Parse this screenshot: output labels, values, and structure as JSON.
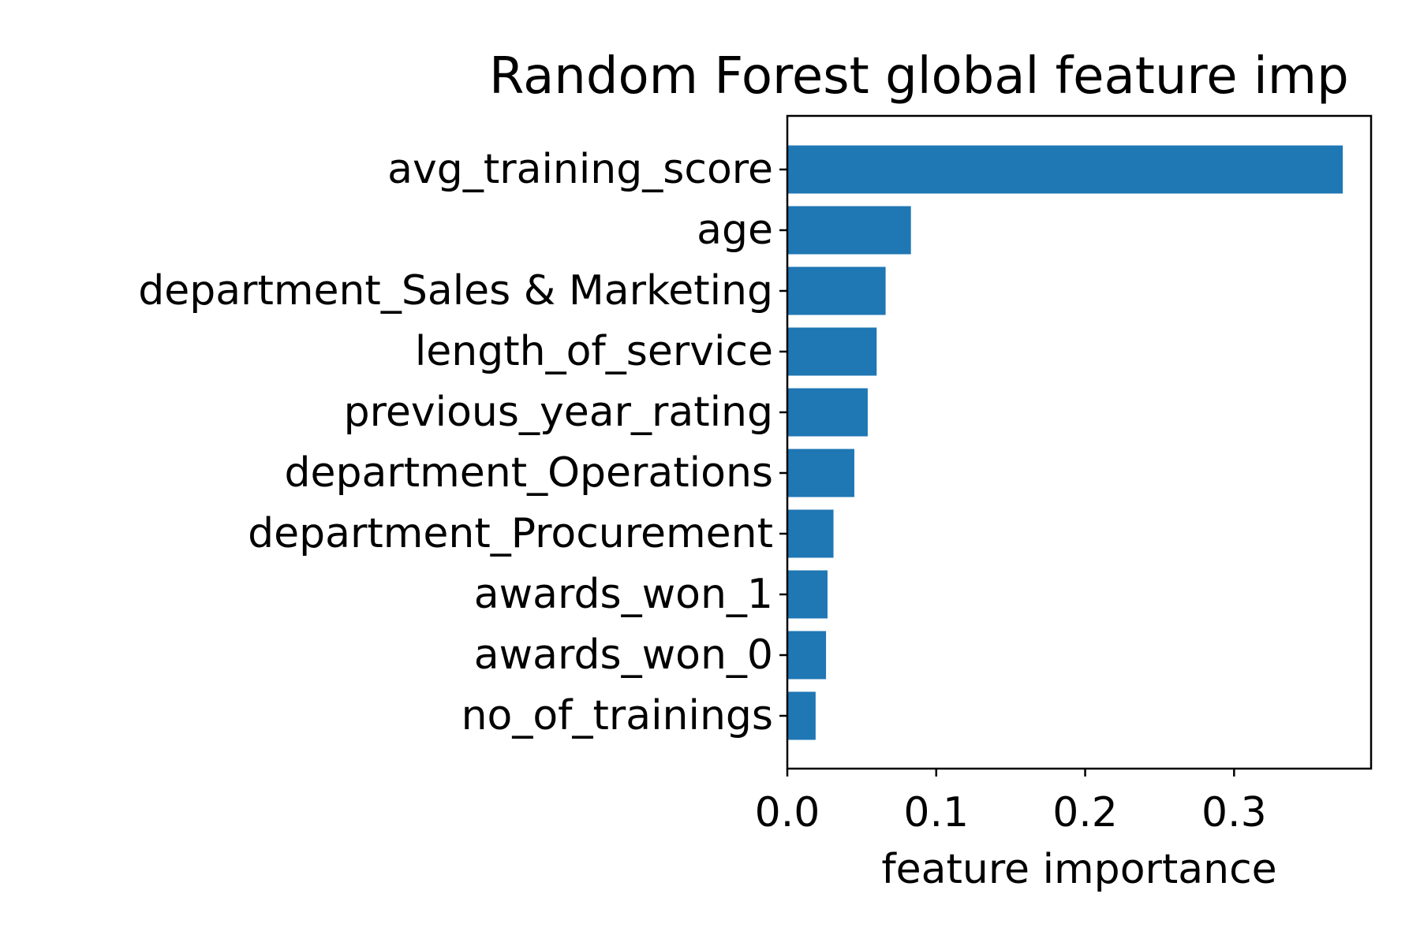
{
  "chart_data": {
    "type": "bar",
    "orientation": "horizontal",
    "title": "Random Forest global feature imp",
    "xlabel": "feature importance",
    "ylabel": "",
    "categories": [
      "avg_training_score",
      "age",
      "department_Sales & Marketing",
      "length_of_service",
      "previous_year_rating",
      "department_Operations",
      "department_Procurement",
      "awards_won_1",
      "awards_won_0",
      "no_of_trainings"
    ],
    "values": [
      0.373,
      0.083,
      0.066,
      0.06,
      0.054,
      0.045,
      0.031,
      0.027,
      0.026,
      0.019
    ],
    "xlim": [
      0.0,
      0.392
    ],
    "xticks": [
      0.0,
      0.1,
      0.2,
      0.3
    ],
    "xtick_labels": [
      "0.0",
      "0.1",
      "0.2",
      "0.3"
    ],
    "bar_color": "#1f77b4",
    "grid": false,
    "legend": "none"
  }
}
